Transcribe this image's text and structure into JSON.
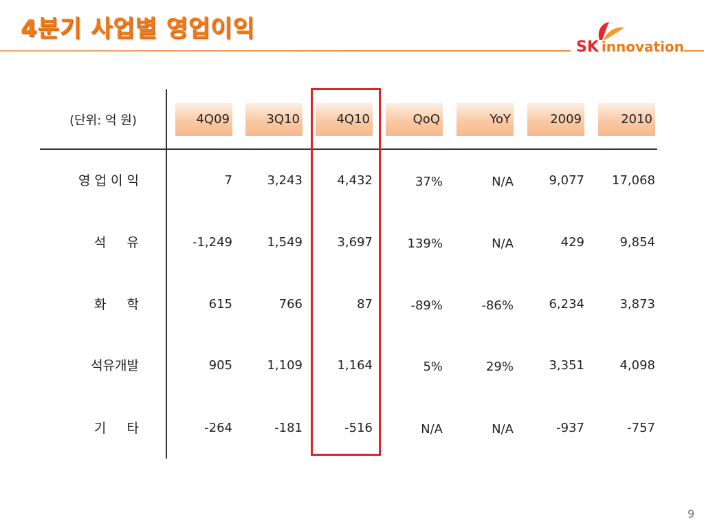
{
  "title": "4분기 사업별 영업이익",
  "logo": {
    "brand": "SK",
    "name": "innovation"
  },
  "table": {
    "unit_label": "(단위: 억 원)",
    "columns": [
      "4Q09",
      "3Q10",
      "4Q10",
      "QoQ",
      "YoY",
      "2009",
      "2010"
    ],
    "rows": [
      {
        "label": "영 업 이 익",
        "values": [
          "7",
          "3,243",
          "4,432",
          "37%",
          "N/A",
          "9,077",
          "17,068"
        ]
      },
      {
        "label": "석     유",
        "values": [
          "-1,249",
          "1,549",
          "3,697",
          "139%",
          "N/A",
          "429",
          "9,854"
        ]
      },
      {
        "label": "화     학",
        "values": [
          "615",
          "766",
          "87",
          "-89%",
          "-86%",
          "6,234",
          "3,873"
        ]
      },
      {
        "label": "석유개발",
        "values": [
          "905",
          "1,109",
          "1,164",
          "5%",
          "29%",
          "3,351",
          "4,098"
        ]
      },
      {
        "label": "기     타",
        "values": [
          "-264",
          "-181",
          "-516",
          "N/A",
          "N/A",
          "-937",
          "-757"
        ]
      }
    ],
    "highlight_column": "4Q10",
    "highlight_color": "#e0232a"
  },
  "page_number": "9"
}
